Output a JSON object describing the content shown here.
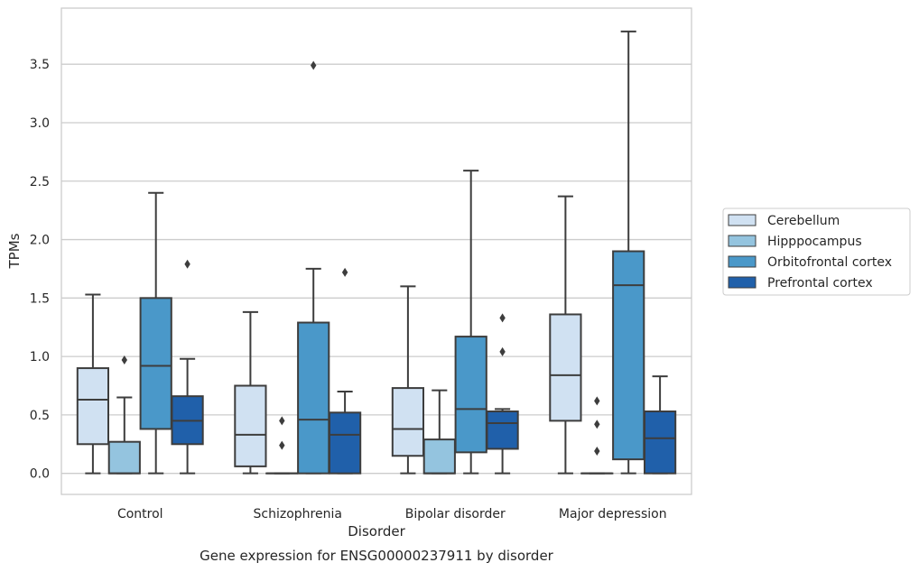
{
  "chart_data": {
    "type": "box",
    "caption": "Gene expression for ENSG00000237911 by disorder",
    "xlabel": "Disorder",
    "ylabel": "TPMs",
    "ylim": [
      -0.18,
      3.98
    ],
    "yticks": [
      "0.0",
      "0.5",
      "1.0",
      "1.5",
      "2.0",
      "2.5",
      "3.0",
      "3.5"
    ],
    "grid": "horizontal",
    "legend_position": "right",
    "categories": [
      "Control",
      "Schizophrenia",
      "Bipolar disorder",
      "Major depression"
    ],
    "series": [
      {
        "name": "Cerebellum",
        "color": "#d0e1f2",
        "boxes": [
          {
            "whislo": 0.0,
            "q1": 0.25,
            "med": 0.63,
            "q3": 0.9,
            "whishi": 1.53,
            "fliers": []
          },
          {
            "whislo": 0.0,
            "q1": 0.06,
            "med": 0.33,
            "q3": 0.75,
            "whishi": 1.38,
            "fliers": []
          },
          {
            "whislo": 0.0,
            "q1": 0.15,
            "med": 0.38,
            "q3": 0.73,
            "whishi": 1.6,
            "fliers": []
          },
          {
            "whislo": 0.0,
            "q1": 0.45,
            "med": 0.84,
            "q3": 1.36,
            "whishi": 2.37,
            "fliers": []
          }
        ]
      },
      {
        "name": "Hipppocampus",
        "color": "#94c4df",
        "boxes": [
          {
            "whislo": 0.0,
            "q1": 0.0,
            "med": 0.0,
            "q3": 0.27,
            "whishi": 0.65,
            "fliers": [
              0.97
            ]
          },
          {
            "whislo": 0.0,
            "q1": 0.0,
            "med": 0.0,
            "q3": 0.0,
            "whishi": 0.0,
            "fliers": [
              0.24,
              0.45
            ]
          },
          {
            "whislo": 0.0,
            "q1": 0.0,
            "med": 0.0,
            "q3": 0.29,
            "whishi": 0.71,
            "fliers": []
          },
          {
            "whislo": 0.0,
            "q1": 0.0,
            "med": 0.0,
            "q3": 0.0,
            "whishi": 0.0,
            "fliers": [
              0.19,
              0.42,
              0.62
            ]
          }
        ]
      },
      {
        "name": "Orbitofrontal cortex",
        "color": "#4a98c9",
        "boxes": [
          {
            "whislo": 0.0,
            "q1": 0.38,
            "med": 0.92,
            "q3": 1.5,
            "whishi": 2.4,
            "fliers": []
          },
          {
            "whislo": 0.0,
            "q1": 0.0,
            "med": 0.46,
            "q3": 1.29,
            "whishi": 1.75,
            "fliers": [
              3.49
            ]
          },
          {
            "whislo": 0.0,
            "q1": 0.18,
            "med": 0.55,
            "q3": 1.17,
            "whishi": 2.59,
            "fliers": []
          },
          {
            "whislo": 0.0,
            "q1": 0.12,
            "med": 1.61,
            "q3": 1.9,
            "whishi": 3.78,
            "fliers": []
          }
        ]
      },
      {
        "name": "Prefrontal cortex",
        "color": "#2060aa",
        "boxes": [
          {
            "whislo": 0.0,
            "q1": 0.25,
            "med": 0.45,
            "q3": 0.66,
            "whishi": 0.98,
            "fliers": [
              1.79
            ]
          },
          {
            "whislo": 0.0,
            "q1": 0.0,
            "med": 0.33,
            "q3": 0.52,
            "whishi": 0.7,
            "fliers": [
              1.72
            ]
          },
          {
            "whislo": 0.0,
            "q1": 0.21,
            "med": 0.43,
            "q3": 0.53,
            "whishi": 0.55,
            "fliers": [
              1.04,
              1.33
            ]
          },
          {
            "whislo": 0.0,
            "q1": 0.0,
            "med": 0.3,
            "q3": 0.53,
            "whishi": 0.83,
            "fliers": []
          }
        ]
      }
    ]
  }
}
